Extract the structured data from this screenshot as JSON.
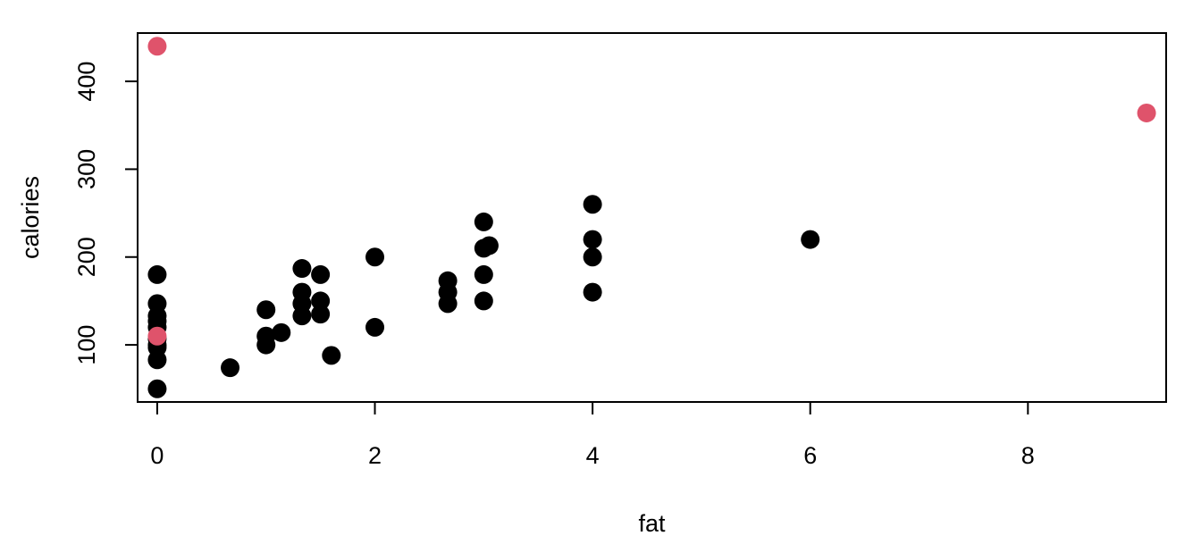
{
  "chart_data": {
    "type": "scatter",
    "title": "",
    "xlabel": "fat",
    "ylabel": "calories",
    "xlim": [
      -0.18,
      9.27
    ],
    "ylim": [
      35,
      455
    ],
    "x_ticks": [
      0,
      2,
      4,
      6,
      8
    ],
    "y_ticks": [
      100,
      200,
      300,
      400
    ],
    "grid": false,
    "legend": "none",
    "colors": {
      "default_point": "#000000",
      "highlight_point": "#DF536B",
      "axis": "#000000",
      "background": "#ffffff"
    },
    "series": [
      {
        "color": "#000000",
        "points": [
          {
            "x": 0,
            "y": 50
          },
          {
            "x": 0,
            "y": 83
          },
          {
            "x": 0,
            "y": 97
          },
          {
            "x": 0,
            "y": 100
          },
          {
            "x": 0,
            "y": 107
          },
          {
            "x": 0,
            "y": 120
          },
          {
            "x": 0,
            "y": 127
          },
          {
            "x": 0,
            "y": 133
          },
          {
            "x": 0,
            "y": 147
          },
          {
            "x": 0,
            "y": 180
          },
          {
            "x": 0.67,
            "y": 74
          },
          {
            "x": 1,
            "y": 100
          },
          {
            "x": 1,
            "y": 110
          },
          {
            "x": 1,
            "y": 140
          },
          {
            "x": 1.14,
            "y": 114
          },
          {
            "x": 1.33,
            "y": 133
          },
          {
            "x": 1.33,
            "y": 147
          },
          {
            "x": 1.33,
            "y": 160
          },
          {
            "x": 1.33,
            "y": 187
          },
          {
            "x": 1.5,
            "y": 135
          },
          {
            "x": 1.5,
            "y": 150
          },
          {
            "x": 1.5,
            "y": 180
          },
          {
            "x": 1.6,
            "y": 88
          },
          {
            "x": 2,
            "y": 120
          },
          {
            "x": 2,
            "y": 200
          },
          {
            "x": 2.67,
            "y": 147
          },
          {
            "x": 2.67,
            "y": 160
          },
          {
            "x": 2.67,
            "y": 173
          },
          {
            "x": 3,
            "y": 150
          },
          {
            "x": 3,
            "y": 180
          },
          {
            "x": 3,
            "y": 210
          },
          {
            "x": 3,
            "y": 240
          },
          {
            "x": 3.05,
            "y": 213
          },
          {
            "x": 4,
            "y": 160
          },
          {
            "x": 4,
            "y": 200
          },
          {
            "x": 4,
            "y": 220
          },
          {
            "x": 4,
            "y": 260
          },
          {
            "x": 6,
            "y": 220
          }
        ]
      },
      {
        "color": "#DF536B",
        "points": [
          {
            "x": 0,
            "y": 440
          },
          {
            "x": 0,
            "y": 110
          },
          {
            "x": 9.09,
            "y": 364
          }
        ]
      }
    ]
  }
}
